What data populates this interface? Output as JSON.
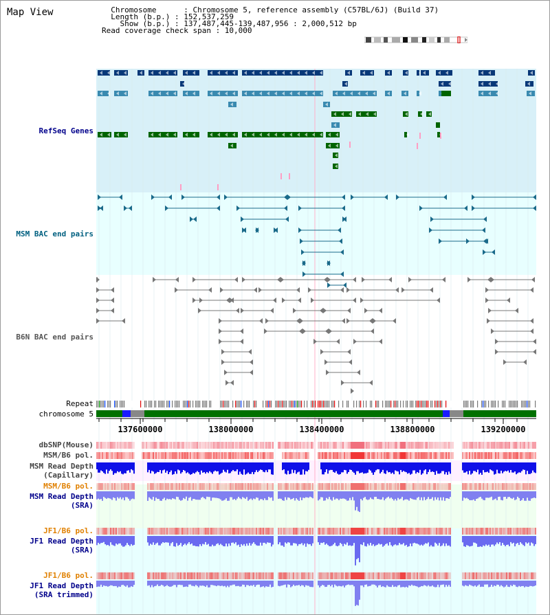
{
  "header": {
    "title": "Map View",
    "info_lines": [
      "  Chromosome      : Chromosome 5, reference assembly (C57BL/6J) (Build 37)",
      "  Length (b.p.) : 152,537,259",
      "    Show (b.p.) : 137,487,445-139,487,956 : 2,000,512 bp",
      "Read coverage check span : 10,000"
    ]
  },
  "tracks": {
    "refseq": "RefSeq Genes",
    "msm_bac": "MSM BAC end pairs",
    "b6n_bac": "B6N BAC end pairs",
    "repeat": "Repeat",
    "chromosome": "chromosome 5",
    "dbsnp": "dbSNP(Mouse)",
    "msm_pol": "MSM/B6 pol.",
    "msm_depth_cap_1": "MSM Read Depth",
    "msm_depth_cap_2": "(Capillary)",
    "msm_pol_sra": "MSM/B6 pol.",
    "msm_depth_sra_1": "MSM Read Depth",
    "msm_depth_sra_2": "(SRA)",
    "jf1_pol": "JF1/B6 pol.",
    "jf1_depth_1": "JF1 Read Depth",
    "jf1_depth_2": "(SRA)",
    "jf1_pol_trim": "JF1/B6 pol.",
    "jf1_trim_1": "JF1 Read Depth",
    "jf1_trim_2": "(SRA trimmed)"
  },
  "axis": {
    "ticks": [
      "137600000",
      "138000000",
      "138400000",
      "138800000",
      "139200000"
    ]
  },
  "colors": {
    "refseq_bg": "#d8f0f8",
    "bac_bg": "#e8ffff",
    "gene_dark": "#083878",
    "gene_mid": "#3a8ab0",
    "gene_green": "#006400",
    "chrom_green": "#007000",
    "track_blue_label": "#00008b",
    "track_teal_label": "#006080",
    "track_orange_label": "#e08000"
  }
}
